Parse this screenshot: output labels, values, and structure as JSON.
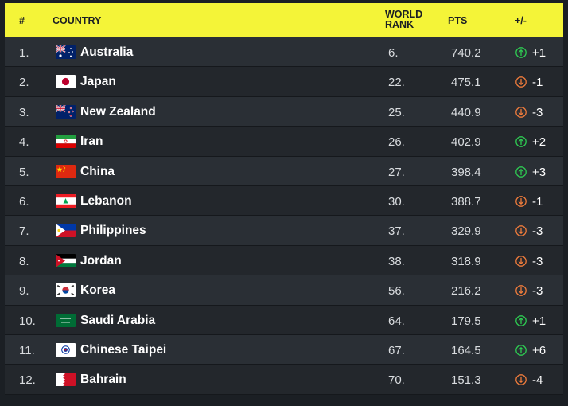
{
  "header": {
    "rank": "#",
    "country": "COUNTRY",
    "world_rank_line1": "WORLD",
    "world_rank_line2": "RANK",
    "pts": "PTS",
    "change": "+/-"
  },
  "colors": {
    "header_bg": "#f4f438",
    "up": "#2ecc52",
    "down": "#f07c3c"
  },
  "rows": [
    {
      "rank": "1.",
      "country": "Australia",
      "flag": "australia-flag-icon",
      "world_rank": "6.",
      "pts": "740.2",
      "dir": "up",
      "change": "+1"
    },
    {
      "rank": "2.",
      "country": "Japan",
      "flag": "japan-flag-icon",
      "world_rank": "22.",
      "pts": "475.1",
      "dir": "down",
      "change": "-1"
    },
    {
      "rank": "3.",
      "country": "New Zealand",
      "flag": "new-zealand-flag-icon",
      "world_rank": "25.",
      "pts": "440.9",
      "dir": "down",
      "change": "-3"
    },
    {
      "rank": "4.",
      "country": "Iran",
      "flag": "iran-flag-icon",
      "world_rank": "26.",
      "pts": "402.9",
      "dir": "up",
      "change": "+2"
    },
    {
      "rank": "5.",
      "country": "China",
      "flag": "china-flag-icon",
      "world_rank": "27.",
      "pts": "398.4",
      "dir": "up",
      "change": "+3"
    },
    {
      "rank": "6.",
      "country": "Lebanon",
      "flag": "lebanon-flag-icon",
      "world_rank": "30.",
      "pts": "388.7",
      "dir": "down",
      "change": "-1"
    },
    {
      "rank": "7.",
      "country": "Philippines",
      "flag": "philippines-flag-icon",
      "world_rank": "37.",
      "pts": "329.9",
      "dir": "down",
      "change": "-3"
    },
    {
      "rank": "8.",
      "country": "Jordan",
      "flag": "jordan-flag-icon",
      "world_rank": "38.",
      "pts": "318.9",
      "dir": "down",
      "change": "-3"
    },
    {
      "rank": "9.",
      "country": "Korea",
      "flag": "korea-flag-icon",
      "world_rank": "56.",
      "pts": "216.2",
      "dir": "down",
      "change": "-3"
    },
    {
      "rank": "10.",
      "country": "Saudi Arabia",
      "flag": "saudi-arabia-flag-icon",
      "world_rank": "64.",
      "pts": "179.5",
      "dir": "up",
      "change": "+1"
    },
    {
      "rank": "11.",
      "country": "Chinese Taipei",
      "flag": "chinese-taipei-flag-icon",
      "world_rank": "67.",
      "pts": "164.5",
      "dir": "up",
      "change": "+6"
    },
    {
      "rank": "12.",
      "country": "Bahrain",
      "flag": "bahrain-flag-icon",
      "world_rank": "70.",
      "pts": "151.3",
      "dir": "down",
      "change": "-4"
    }
  ]
}
